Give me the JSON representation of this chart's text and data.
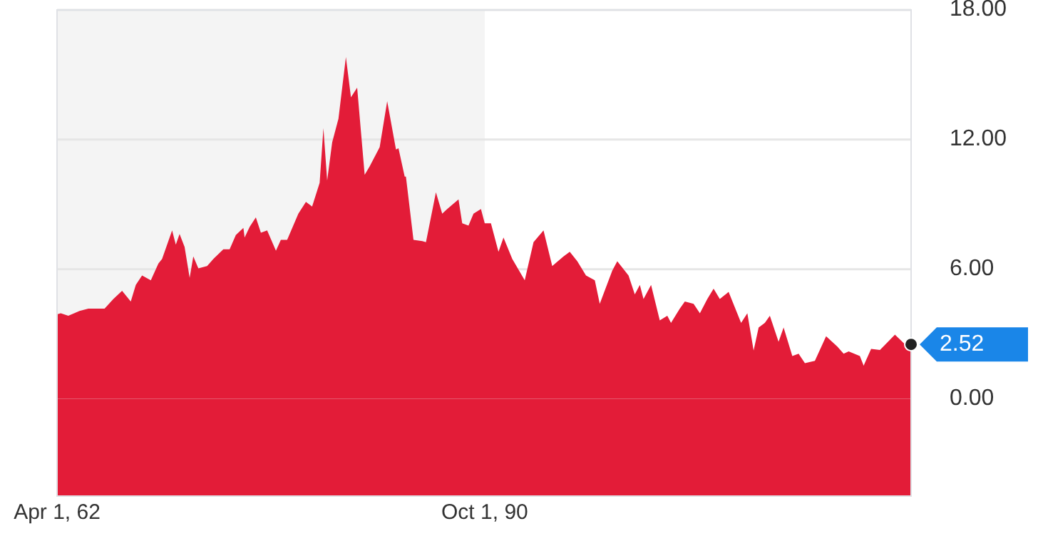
{
  "chart_data": {
    "type": "area",
    "x": [
      "1962-04",
      "1962-07",
      "1963-01",
      "1963-10",
      "1964-05",
      "1965-06",
      "1966-01",
      "1966-08",
      "1967-03",
      "1967-07",
      "1967-12",
      "1968-07",
      "1969-01",
      "1969-04",
      "1969-12",
      "1970-03",
      "1970-06",
      "1970-10",
      "1971-02",
      "1971-05",
      "1971-09",
      "1972-04",
      "1972-09",
      "1973-05",
      "1973-10",
      "1974-03",
      "1974-09",
      "1974-10",
      "1975-02",
      "1975-07",
      "1975-11",
      "1976-04",
      "1976-11",
      "1977-03",
      "1977-08",
      "1978-05",
      "1978-11",
      "1979-04",
      "1979-10",
      "1980-01",
      "1980-04",
      "1980-08",
      "1981-01",
      "1981-07",
      "1981-11",
      "1982-04",
      "1982-10",
      "1983-02",
      "1983-10",
      "1984-04",
      "1984-11",
      "1985-01",
      "1985-06",
      "1985-07",
      "1986-01",
      "1986-08",
      "1986-11",
      "1987-07",
      "1987-12",
      "1988-04",
      "1989-01",
      "1989-04",
      "1989-09",
      "1990-01",
      "1990-07",
      "1990-10",
      "1991-03",
      "1991-09",
      "1992-01",
      "1992-08",
      "1993-06",
      "1994-01",
      "1994-09",
      "1995-04",
      "1996-01",
      "1996-06",
      "1996-12",
      "1997-07",
      "1998-02",
      "1998-06",
      "1999-04",
      "1999-08",
      "2000-05",
      "2000-10",
      "2001-02",
      "2001-05",
      "2001-11",
      "2002-06",
      "2002-12",
      "2003-03",
      "2003-10",
      "2004-02",
      "2004-09",
      "2005-02",
      "2005-08",
      "2006-01",
      "2006-06",
      "2007-01",
      "2007-11",
      "2008-04",
      "2008-09",
      "2009-01",
      "2009-06",
      "2009-10",
      "2010-05",
      "2010-09",
      "2011-04",
      "2011-09",
      "2012-02",
      "2012-10",
      "2013-07",
      "2014-04",
      "2014-09",
      "2015-01",
      "2015-10",
      "2016-01",
      "2016-07",
      "2017-02",
      "2018-02",
      "2018-10",
      "2019-03"
    ],
    "series": [
      {
        "color": "#e31c38",
        "values": [
          3.91,
          3.96,
          3.85,
          4.07,
          4.18,
          4.18,
          4.62,
          5.0,
          4.51,
          5.27,
          5.71,
          5.49,
          6.26,
          6.48,
          7.8,
          7.14,
          7.63,
          7.03,
          5.6,
          6.59,
          6.04,
          6.15,
          6.48,
          6.92,
          6.92,
          7.58,
          7.91,
          7.47,
          7.96,
          8.4,
          7.69,
          7.8,
          6.86,
          7.36,
          7.36,
          8.57,
          9.12,
          8.9,
          10.0,
          12.53,
          10.11,
          11.87,
          12.97,
          15.82,
          13.96,
          14.4,
          10.37,
          10.77,
          11.65,
          13.78,
          11.54,
          11.6,
          10.29,
          10.29,
          7.36,
          7.3,
          7.25,
          9.56,
          8.57,
          8.79,
          9.23,
          8.13,
          8.02,
          8.57,
          8.79,
          8.13,
          8.13,
          6.81,
          7.47,
          6.48,
          5.49,
          7.25,
          7.8,
          6.15,
          6.59,
          6.81,
          6.37,
          5.71,
          5.49,
          4.4,
          5.93,
          6.37,
          5.71,
          4.84,
          5.27,
          4.62,
          5.27,
          3.63,
          3.85,
          3.52,
          4.18,
          4.51,
          4.4,
          3.96,
          4.62,
          5.1,
          4.62,
          4.95,
          3.52,
          3.96,
          2.24,
          3.3,
          3.52,
          3.85,
          2.64,
          3.3,
          1.98,
          2.09,
          1.65,
          1.76,
          2.9,
          2.42,
          2.09,
          2.2,
          1.98,
          1.54,
          2.31,
          2.26,
          2.97,
          2.53,
          2.52
        ]
      }
    ],
    "xlim": [
      "1962-04",
      "2019-03"
    ],
    "xticks": [
      {
        "value": "1962-04-01",
        "label": "Apr 1, 62"
      },
      {
        "value": "1990-10-01",
        "label": "Oct 1, 90"
      }
    ],
    "ylim": [
      -4.5,
      18
    ],
    "yticks": [
      {
        "value": 0,
        "label": "0.00"
      },
      {
        "value": 6,
        "label": "6.00"
      },
      {
        "value": 12,
        "label": "12.00"
      },
      {
        "value": 18,
        "label": "18.00"
      }
    ],
    "grid": "y",
    "legend": false,
    "bands": [
      {
        "axis": "x",
        "from": "1962-04-01",
        "to": "1990-10-01",
        "color": "#f4f4f4"
      }
    ],
    "annotations": [
      {
        "text": "2.52",
        "x": "2019-03",
        "y": 2.52
      }
    ]
  }
}
